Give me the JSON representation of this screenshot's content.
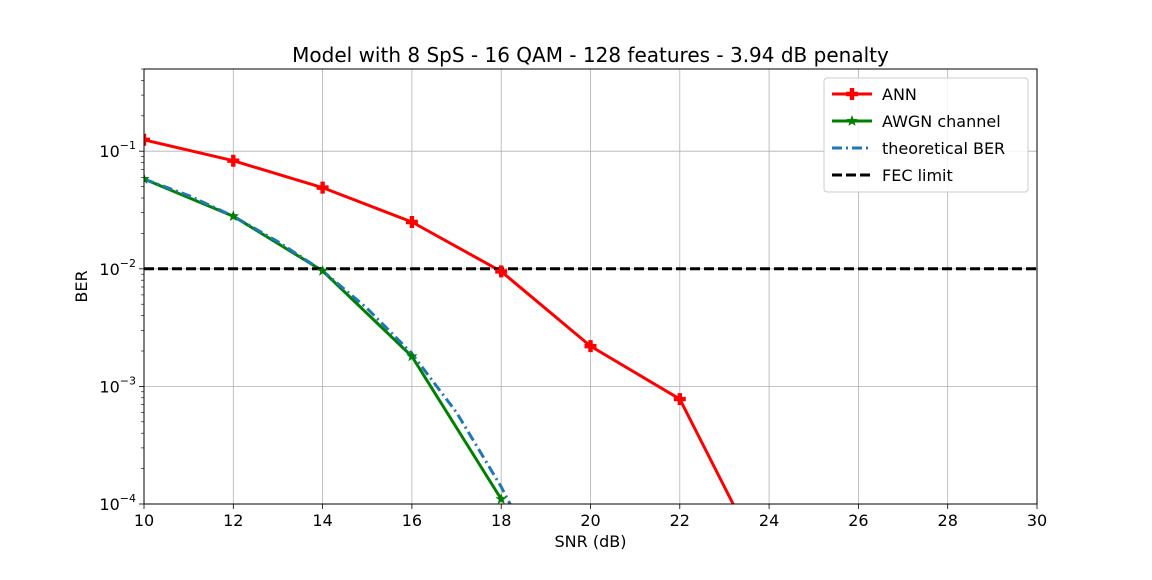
{
  "chart_data": {
    "type": "line",
    "title": "Model with 8 SpS - 16 QAM - 128 features - 3.94 dB penalty",
    "xlabel": "SNR (dB)",
    "ylabel": "BER",
    "xlim": [
      10,
      30
    ],
    "ylim": [
      0.0001,
      0.5
    ],
    "y_scale": "log",
    "grid": true,
    "legend_position": "top-right",
    "x_ticks": [
      10,
      12,
      14,
      16,
      18,
      20,
      22,
      24,
      26,
      28,
      30
    ],
    "x_tick_labels": [
      "10",
      "12",
      "14",
      "16",
      "18",
      "20",
      "22",
      "24",
      "26",
      "28",
      "30"
    ],
    "y_ticks": [
      0.0001,
      0.001,
      0.01,
      0.1
    ],
    "y_tick_labels": [
      {
        "base": "10",
        "exp": "−4"
      },
      {
        "base": "10",
        "exp": "−3"
      },
      {
        "base": "10",
        "exp": "−2"
      },
      {
        "base": "10",
        "exp": "−1"
      }
    ],
    "series": [
      {
        "name": "ANN",
        "color": "#ff0000",
        "line_style": "solid",
        "marker": "plus",
        "x": [
          10,
          12,
          14,
          16,
          18,
          20,
          22,
          24
        ],
        "y": [
          0.125,
          0.083,
          0.049,
          0.025,
          0.0095,
          0.0022,
          0.00078,
          2.5e-05
        ]
      },
      {
        "name": "AWGN channel",
        "color": "#008000",
        "line_style": "solid",
        "marker": "star",
        "x": [
          10,
          12,
          14,
          16,
          18
        ],
        "y": [
          0.058,
          0.028,
          0.0096,
          0.0018,
          0.00011
        ]
      },
      {
        "name": "theoretical BER",
        "color": "#1f77b4",
        "line_style": "dashdot",
        "marker": "none",
        "x": [
          10,
          11,
          12,
          13,
          14,
          15,
          16,
          17,
          18,
          18.5
        ],
        "y": [
          0.058,
          0.042,
          0.028,
          0.017,
          0.0096,
          0.0046,
          0.0019,
          0.0006,
          0.00014,
          6e-05
        ]
      },
      {
        "name": "FEC limit",
        "color": "#000000",
        "line_style": "dashed",
        "marker": "none",
        "x": [
          10,
          30
        ],
        "y": [
          0.01,
          0.01
        ]
      }
    ]
  }
}
